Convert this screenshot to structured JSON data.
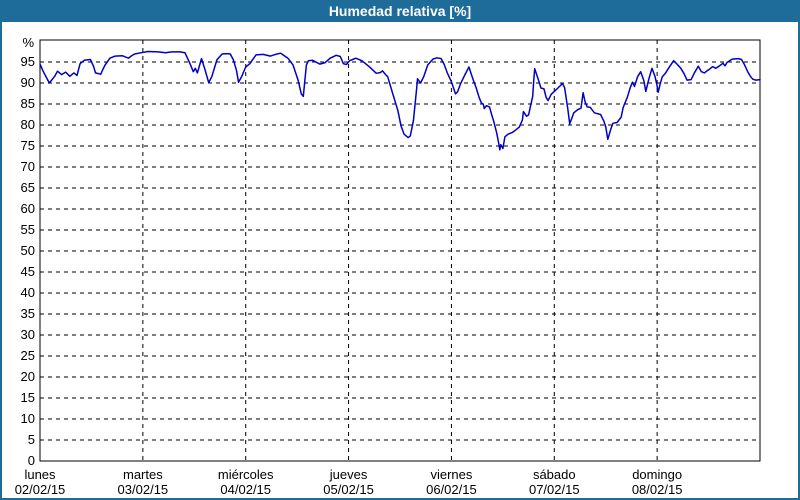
{
  "colors": {
    "titlebar_bg": "#1e6c99",
    "titlebar_text": "#ffffff",
    "outer_border": "#1e6c99",
    "plot_frame": "#000000",
    "gridline": "#000000",
    "axis_text": "#000000",
    "line": "#0000c8",
    "background": "#ffffff"
  },
  "chart_data": {
    "type": "line",
    "title": "Humedad relativa [%]",
    "ylabel": "%",
    "xlabel": "",
    "ylim": [
      0,
      100.2
    ],
    "grid": true,
    "legend": "none",
    "y_ticks": [
      0,
      5,
      10,
      15,
      20,
      25,
      30,
      35,
      40,
      45,
      50,
      55,
      60,
      65,
      70,
      75,
      80,
      85,
      90,
      95
    ],
    "x_days": [
      {
        "name": "lunes",
        "date": "02/02/15"
      },
      {
        "name": "martes",
        "date": "03/02/15"
      },
      {
        "name": "miércoles",
        "date": "04/02/15"
      },
      {
        "name": "jueves",
        "date": "05/02/15"
      },
      {
        "name": "viernes",
        "date": "06/02/15"
      },
      {
        "name": "sábado",
        "date": "07/02/15"
      },
      {
        "name": "domingo",
        "date": "08/02/15"
      }
    ],
    "x_unit": "days_from_monday_00h",
    "series": [
      {
        "name": "Humedad relativa",
        "color": "#0000c8",
        "points": [
          [
            0.0,
            94.5
          ],
          [
            0.03,
            92.8
          ],
          [
            0.09,
            90.0
          ],
          [
            0.14,
            91.5
          ],
          [
            0.17,
            92.8
          ],
          [
            0.21,
            92.0
          ],
          [
            0.25,
            92.6
          ],
          [
            0.29,
            91.6
          ],
          [
            0.33,
            92.4
          ],
          [
            0.36,
            91.8
          ],
          [
            0.39,
            94.6
          ],
          [
            0.43,
            95.4
          ],
          [
            0.49,
            95.6
          ],
          [
            0.52,
            94.0
          ],
          [
            0.54,
            92.4
          ],
          [
            0.59,
            92.1
          ],
          [
            0.63,
            94.2
          ],
          [
            0.68,
            95.9
          ],
          [
            0.73,
            96.4
          ],
          [
            0.8,
            96.5
          ],
          [
            0.86,
            95.9
          ],
          [
            0.88,
            96.3
          ],
          [
            0.92,
            96.9
          ],
          [
            0.98,
            97.2
          ],
          [
            1.05,
            97.5
          ],
          [
            1.15,
            97.4
          ],
          [
            1.22,
            97.2
          ],
          [
            1.28,
            97.4
          ],
          [
            1.36,
            97.4
          ],
          [
            1.41,
            97.2
          ],
          [
            1.46,
            94.5
          ],
          [
            1.49,
            92.7
          ],
          [
            1.51,
            93.5
          ],
          [
            1.53,
            92.4
          ],
          [
            1.57,
            95.8
          ],
          [
            1.6,
            93.5
          ],
          [
            1.64,
            90.1
          ],
          [
            1.67,
            91.5
          ],
          [
            1.72,
            95.5
          ],
          [
            1.77,
            96.9
          ],
          [
            1.82,
            97.0
          ],
          [
            1.85,
            96.9
          ],
          [
            1.88,
            95.5
          ],
          [
            1.91,
            93.0
          ],
          [
            1.93,
            90.2
          ],
          [
            1.96,
            91.5
          ],
          [
            2.0,
            93.8
          ],
          [
            2.04,
            94.6
          ],
          [
            2.1,
            96.7
          ],
          [
            2.17,
            96.8
          ],
          [
            2.24,
            96.4
          ],
          [
            2.29,
            96.8
          ],
          [
            2.34,
            97.1
          ],
          [
            2.41,
            95.9
          ],
          [
            2.46,
            94.3
          ],
          [
            2.51,
            90.6
          ],
          [
            2.54,
            87.4
          ],
          [
            2.56,
            86.8
          ],
          [
            2.59,
            94.3
          ],
          [
            2.61,
            95.3
          ],
          [
            2.65,
            95.4
          ],
          [
            2.72,
            94.5
          ],
          [
            2.77,
            94.8
          ],
          [
            2.82,
            95.9
          ],
          [
            2.88,
            96.6
          ],
          [
            2.92,
            96.3
          ],
          [
            2.95,
            94.6
          ],
          [
            2.98,
            94.4
          ],
          [
            3.01,
            95.3
          ],
          [
            3.04,
            95.6
          ],
          [
            3.07,
            95.9
          ],
          [
            3.13,
            95.3
          ],
          [
            3.2,
            93.9
          ],
          [
            3.27,
            92.3
          ],
          [
            3.31,
            92.5
          ],
          [
            3.33,
            92.9
          ],
          [
            3.36,
            92.0
          ],
          [
            3.38,
            91.5
          ],
          [
            3.43,
            87.4
          ],
          [
            3.48,
            83.4
          ],
          [
            3.51,
            79.8
          ],
          [
            3.54,
            77.8
          ],
          [
            3.58,
            77.0
          ],
          [
            3.6,
            77.4
          ],
          [
            3.63,
            81.0
          ],
          [
            3.66,
            88.3
          ],
          [
            3.67,
            91.0
          ],
          [
            3.7,
            90.0
          ],
          [
            3.73,
            91.5
          ],
          [
            3.77,
            94.3
          ],
          [
            3.82,
            95.7
          ],
          [
            3.86,
            96.0
          ],
          [
            3.9,
            95.8
          ],
          [
            3.93,
            94.4
          ],
          [
            3.96,
            92.4
          ],
          [
            4.0,
            90.3
          ],
          [
            4.04,
            87.4
          ],
          [
            4.06,
            87.9
          ],
          [
            4.09,
            89.9
          ],
          [
            4.13,
            91.9
          ],
          [
            4.17,
            93.8
          ],
          [
            4.21,
            90.9
          ],
          [
            4.24,
            88.9
          ],
          [
            4.27,
            86.5
          ],
          [
            4.29,
            85.3
          ],
          [
            4.31,
            84.9
          ],
          [
            4.32,
            83.9
          ],
          [
            4.34,
            84.6
          ],
          [
            4.37,
            84.3
          ],
          [
            4.39,
            82.6
          ],
          [
            4.41,
            81.0
          ],
          [
            4.44,
            78.1
          ],
          [
            4.46,
            75.7
          ],
          [
            4.47,
            74.1
          ],
          [
            4.48,
            75.3
          ],
          [
            4.5,
            74.4
          ],
          [
            4.52,
            77.2
          ],
          [
            4.55,
            77.8
          ],
          [
            4.59,
            78.2
          ],
          [
            4.63,
            78.9
          ],
          [
            4.66,
            79.5
          ],
          [
            4.69,
            81.2
          ],
          [
            4.7,
            83.2
          ],
          [
            4.73,
            82.1
          ],
          [
            4.75,
            82.4
          ],
          [
            4.77,
            84.6
          ],
          [
            4.79,
            86.8
          ],
          [
            4.8,
            90.5
          ],
          [
            4.81,
            93.4
          ],
          [
            4.83,
            91.9
          ],
          [
            4.85,
            90.4
          ],
          [
            4.87,
            88.8
          ],
          [
            4.9,
            88.6
          ],
          [
            4.92,
            86.6
          ],
          [
            4.94,
            85.8
          ],
          [
            4.97,
            87.3
          ],
          [
            5.0,
            88.0
          ],
          [
            5.03,
            88.7
          ],
          [
            5.06,
            89.4
          ],
          [
            5.08,
            89.9
          ],
          [
            5.1,
            88.9
          ],
          [
            5.13,
            84.0
          ],
          [
            5.15,
            80.3
          ],
          [
            5.17,
            81.6
          ],
          [
            5.19,
            82.9
          ],
          [
            5.23,
            83.7
          ],
          [
            5.26,
            84.0
          ],
          [
            5.28,
            87.7
          ],
          [
            5.3,
            85.5
          ],
          [
            5.32,
            84.3
          ],
          [
            5.35,
            84.2
          ],
          [
            5.39,
            82.9
          ],
          [
            5.45,
            82.5
          ],
          [
            5.48,
            81.0
          ],
          [
            5.5,
            79.6
          ],
          [
            5.52,
            76.6
          ],
          [
            5.55,
            79.1
          ],
          [
            5.57,
            80.4
          ],
          [
            5.61,
            80.6
          ],
          [
            5.65,
            81.8
          ],
          [
            5.67,
            84.2
          ],
          [
            5.71,
            86.6
          ],
          [
            5.74,
            89.0
          ],
          [
            5.76,
            90.2
          ],
          [
            5.78,
            89.2
          ],
          [
            5.81,
            91.5
          ],
          [
            5.84,
            92.7
          ],
          [
            5.87,
            90.6
          ],
          [
            5.89,
            88.0
          ],
          [
            5.92,
            91.0
          ],
          [
            5.95,
            93.5
          ],
          [
            5.98,
            91.5
          ],
          [
            6.0,
            89.3
          ],
          [
            6.01,
            87.8
          ],
          [
            6.03,
            89.8
          ],
          [
            6.05,
            91.5
          ],
          [
            6.08,
            92.3
          ],
          [
            6.11,
            93.5
          ],
          [
            6.16,
            95.3
          ],
          [
            6.2,
            94.3
          ],
          [
            6.23,
            93.5
          ],
          [
            6.26,
            92.3
          ],
          [
            6.29,
            90.7
          ],
          [
            6.33,
            90.8
          ],
          [
            6.36,
            92.3
          ],
          [
            6.4,
            94.0
          ],
          [
            6.43,
            92.7
          ],
          [
            6.46,
            92.4
          ],
          [
            6.48,
            92.8
          ],
          [
            6.51,
            93.3
          ],
          [
            6.54,
            93.9
          ],
          [
            6.57,
            93.5
          ],
          [
            6.6,
            94.0
          ],
          [
            6.64,
            94.7
          ],
          [
            6.66,
            94.1
          ],
          [
            6.68,
            94.9
          ],
          [
            6.73,
            95.7
          ],
          [
            6.79,
            95.8
          ],
          [
            6.82,
            95.6
          ],
          [
            6.85,
            94.3
          ],
          [
            6.88,
            92.7
          ],
          [
            6.91,
            91.5
          ],
          [
            6.93,
            90.9
          ],
          [
            6.96,
            90.7
          ],
          [
            7.0,
            90.8
          ]
        ]
      }
    ]
  }
}
